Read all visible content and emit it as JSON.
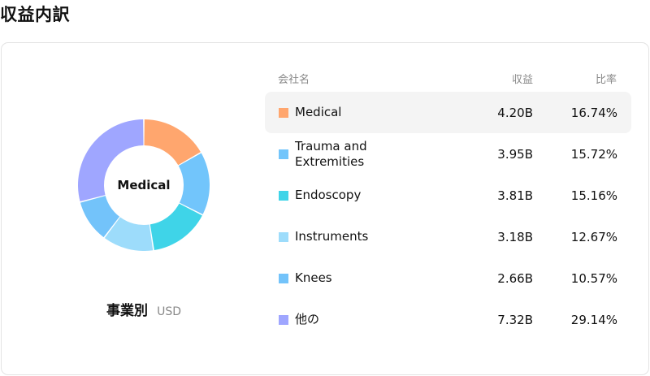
{
  "header": {
    "title": "収益内訳"
  },
  "donut": {
    "center_label": "Medical",
    "caption": "事業別",
    "unit": "USD"
  },
  "table": {
    "headers": {
      "company": "会社名",
      "revenue": "収益",
      "ratio": "比率"
    },
    "rows": [
      {
        "name": "Medical",
        "revenue": "4.20B",
        "ratio": "16.74%",
        "color": "#FFA66E",
        "percent": 16.74,
        "active": true
      },
      {
        "name": "Trauma and Extremities",
        "revenue": "3.95B",
        "ratio": "15.72%",
        "color": "#72C5FB",
        "percent": 15.72,
        "active": false
      },
      {
        "name": "Endoscopy",
        "revenue": "3.81B",
        "ratio": "15.16%",
        "color": "#3FD4E8",
        "percent": 15.16,
        "active": false
      },
      {
        "name": "Instruments",
        "revenue": "3.18B",
        "ratio": "12.67%",
        "color": "#9DDCFB",
        "percent": 12.67,
        "active": false
      },
      {
        "name": "Knees",
        "revenue": "2.66B",
        "ratio": "10.57%",
        "color": "#73C3FA",
        "percent": 10.57,
        "active": false
      },
      {
        "name": "他の",
        "revenue": "7.32B",
        "ratio": "29.14%",
        "color": "#9FA6FF",
        "percent": 29.14,
        "active": false
      }
    ]
  }
}
